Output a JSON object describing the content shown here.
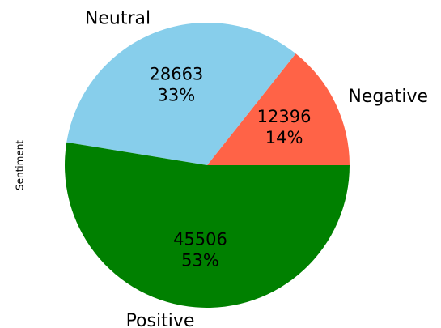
{
  "chart_data": {
    "type": "pie",
    "ylabel": "Sentiment",
    "categories": [
      "Negative",
      "Neutral",
      "Positive"
    ],
    "values": [
      12396,
      28663,
      45506
    ],
    "percent_labels": [
      "14%",
      "33%",
      "53%"
    ],
    "colors": [
      "#ff6347",
      "#87ceeb",
      "#008000"
    ]
  }
}
